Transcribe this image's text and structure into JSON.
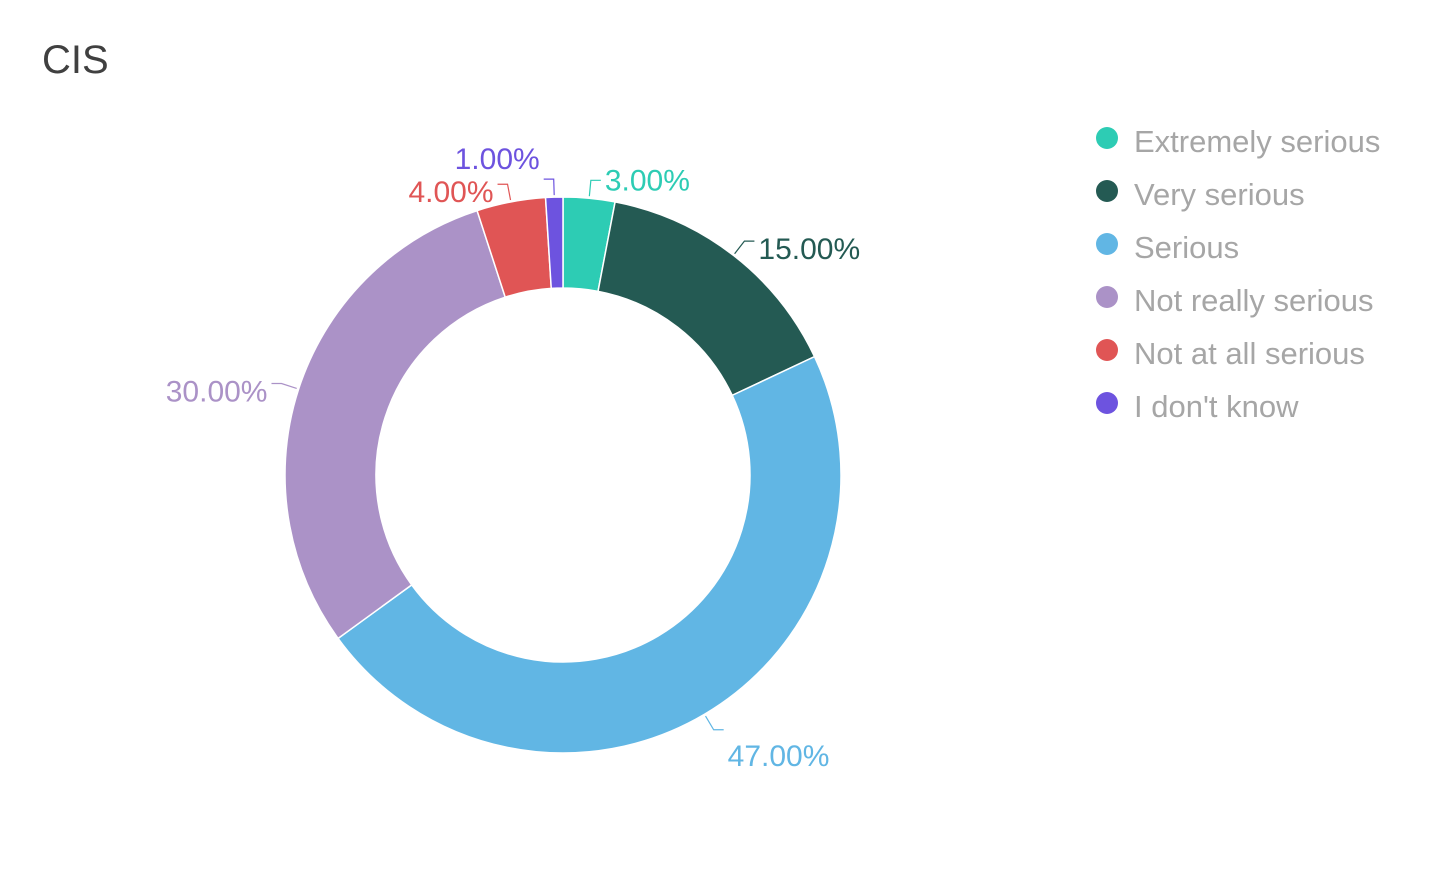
{
  "chart_data": {
    "type": "pie",
    "title": "CIS",
    "donut": true,
    "categories": [
      "Extremely serious",
      "Very serious",
      "Serious",
      "Not really serious",
      "Not at all serious",
      "I don't know"
    ],
    "values": [
      3,
      15,
      47,
      30,
      4,
      1
    ],
    "data_labels": [
      "3.00%",
      "15.00%",
      "47.00%",
      "30.00%",
      "4.00%",
      "1.00%"
    ],
    "colors": [
      "#2dccb4",
      "#245a53",
      "#61b6e4",
      "#ab92c7",
      "#e05555",
      "#6d53df"
    ],
    "legend_position": "right"
  }
}
